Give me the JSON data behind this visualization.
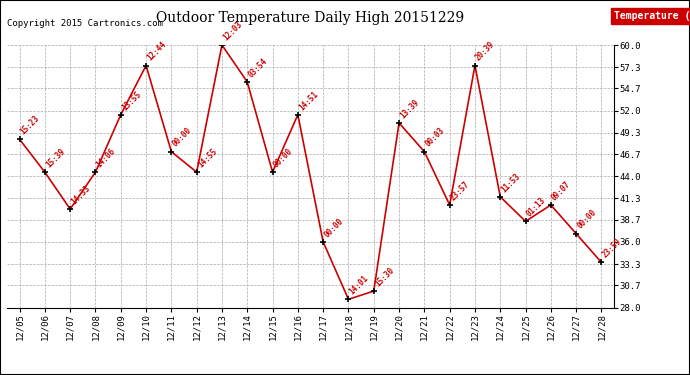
{
  "title": "Outdoor Temperature Daily High 20151229",
  "copyright": "Copyright 2015 Cartronics.com",
  "legend_label": "Temperature (°F)",
  "x_labels": [
    "12/05",
    "12/06",
    "12/07",
    "12/08",
    "12/09",
    "12/10",
    "12/11",
    "12/12",
    "12/13",
    "12/14",
    "12/15",
    "12/16",
    "12/17",
    "12/18",
    "12/19",
    "12/20",
    "12/21",
    "12/22",
    "12/23",
    "12/24",
    "12/25",
    "12/26",
    "12/27",
    "12/28"
  ],
  "y_values": [
    48.5,
    44.5,
    40.0,
    44.5,
    51.5,
    57.5,
    47.0,
    44.5,
    60.0,
    55.5,
    44.5,
    51.5,
    36.0,
    29.0,
    30.0,
    50.5,
    47.0,
    40.5,
    57.5,
    41.5,
    38.5,
    40.5,
    37.0,
    33.5
  ],
  "point_labels": [
    "15:23",
    "15:39",
    "14:33",
    "14:06",
    "13:55",
    "12:44",
    "00:00",
    "14:55",
    "12:03",
    "03:54",
    "00:00",
    "14:51",
    "00:00",
    "14:01",
    "15:30",
    "13:39",
    "00:03",
    "23:57",
    "20:39",
    "11:53",
    "01:13",
    "09:07",
    "00:00",
    "23:59"
  ],
  "ylim": [
    28.0,
    60.0
  ],
  "yticks": [
    28.0,
    30.7,
    33.3,
    36.0,
    38.7,
    41.3,
    44.0,
    46.7,
    49.3,
    52.0,
    54.7,
    57.3,
    60.0
  ],
  "line_color": "#cc0000",
  "marker_color": "#000000",
  "bg_color": "#ffffff",
  "grid_color": "#aaaaaa",
  "label_color": "#cc0000",
  "title_color": "#000000",
  "legend_bg": "#cc0000",
  "legend_text_color": "#ffffff"
}
